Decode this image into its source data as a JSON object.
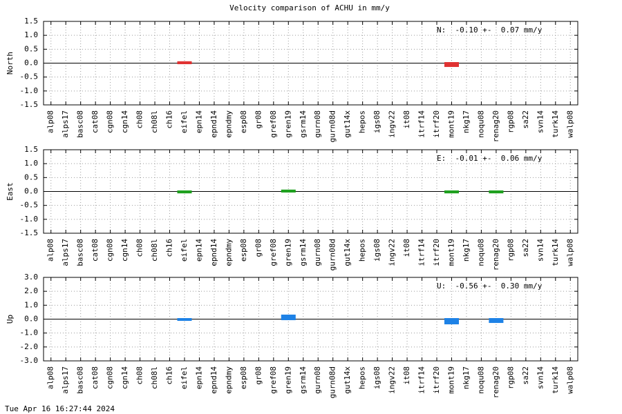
{
  "title": "Velocity comparison of ACHU in mm/y",
  "footer": "Tue Apr 16 16:27:44 2024",
  "chart_data": [
    {
      "type": "bar",
      "y_label": "North",
      "annotation": "N:  -0.10 +-  0.07 mm/y",
      "color": "#e03232",
      "grid": true,
      "categories": [
        "alp08",
        "alps17",
        "basc08",
        "cat08",
        "cgn08",
        "cgn14",
        "ch08",
        "ch08l",
        "ch16",
        "eifel",
        "epn14",
        "epnd14",
        "epndmy",
        "esp08",
        "gr08",
        "gref08",
        "gren19",
        "gsrm14",
        "gurn08",
        "gurn08d",
        "gut14x",
        "hepos",
        "igs08",
        "ingv22",
        "it08",
        "itrf14",
        "itrf20",
        "mont19",
        "nkg17",
        "noqu08",
        "renag20",
        "rgp08",
        "sa22",
        "svn14",
        "turk14",
        "walp08"
      ],
      "values": [
        null,
        null,
        null,
        null,
        null,
        null,
        null,
        null,
        null,
        0.03,
        null,
        null,
        null,
        null,
        null,
        null,
        null,
        null,
        null,
        null,
        null,
        null,
        null,
        null,
        null,
        null,
        null,
        -0.1,
        null,
        null,
        0.0,
        null,
        null,
        null,
        null,
        null
      ],
      "ylim": [
        -1.5,
        1.5
      ],
      "yticks": [
        1.5,
        {
          "value": 1,
          "label": "1.0"
        },
        0.5,
        {
          "value": 0,
          "label": "0.0"
        },
        -0.5,
        {
          "value": -1,
          "label": "-1.0"
        },
        -1.5
      ]
    },
    {
      "type": "bar",
      "y_label": "East",
      "annotation": "E:  -0.01 +-  0.06 mm/y",
      "color": "#1ea01e",
      "grid": true,
      "categories": [
        "alp08",
        "alps17",
        "basc08",
        "cat08",
        "cgn08",
        "cgn14",
        "ch08",
        "ch08l",
        "ch16",
        "eifel",
        "epn14",
        "epnd14",
        "epndmy",
        "esp08",
        "gr08",
        "gref08",
        "gren19",
        "gsrm14",
        "gurn08",
        "gurn08d",
        "gut14x",
        "hepos",
        "igs08",
        "ingv22",
        "it08",
        "itrf14",
        "itrf20",
        "mont19",
        "nkg17",
        "noqu08",
        "renag20",
        "rgp08",
        "sa22",
        "svn14",
        "turk14",
        "walp08"
      ],
      "values": [
        null,
        null,
        null,
        null,
        null,
        null,
        null,
        null,
        null,
        -0.03,
        null,
        null,
        null,
        null,
        null,
        null,
        0.03,
        null,
        null,
        null,
        null,
        null,
        null,
        null,
        null,
        null,
        null,
        -0.03,
        null,
        null,
        -0.03,
        null,
        null,
        null,
        null,
        null
      ],
      "ylim": [
        -1.5,
        1.5
      ],
      "yticks": [
        1.5,
        {
          "value": 1,
          "label": "1.0"
        },
        0.5,
        {
          "value": 0,
          "label": "0.0"
        },
        -0.5,
        {
          "value": -1,
          "label": "-1.0"
        },
        -1.5
      ]
    },
    {
      "type": "bar",
      "y_label": "Up",
      "annotation": "U:  -0.56 +-  0.30 mm/y",
      "color": "#1e82e6",
      "grid": true,
      "categories": [
        "alp08",
        "alps17",
        "basc08",
        "cat08",
        "cgn08",
        "cgn14",
        "ch08",
        "ch08l",
        "ch16",
        "eifel",
        "epn14",
        "epnd14",
        "epndmy",
        "esp08",
        "gr08",
        "gref08",
        "gren19",
        "gsrm14",
        "gurn08",
        "gurn08d",
        "gut14x",
        "hepos",
        "igs08",
        "ingv22",
        "it08",
        "itrf14",
        "itrf20",
        "mont19",
        "nkg17",
        "noqu08",
        "renag20",
        "rgp08",
        "sa22",
        "svn14",
        "turk14",
        "walp08"
      ],
      "values": [
        null,
        null,
        null,
        null,
        null,
        null,
        null,
        null,
        null,
        -0.05,
        null,
        null,
        null,
        null,
        null,
        null,
        0.25,
        null,
        null,
        null,
        null,
        null,
        null,
        null,
        null,
        null,
        null,
        -0.3,
        null,
        null,
        -0.2,
        null,
        null,
        null,
        null,
        null
      ],
      "ylim": [
        -3,
        3
      ],
      "yticks": [
        {
          "value": 3,
          "label": "3.0"
        },
        {
          "value": 2,
          "label": "2.0"
        },
        {
          "value": 1,
          "label": "1.0"
        },
        {
          "value": 0,
          "label": "0.0"
        },
        {
          "value": -1,
          "label": "-1.0"
        },
        {
          "value": -2,
          "label": "-2.0"
        },
        {
          "value": -3,
          "label": "-3.0"
        }
      ]
    }
  ]
}
